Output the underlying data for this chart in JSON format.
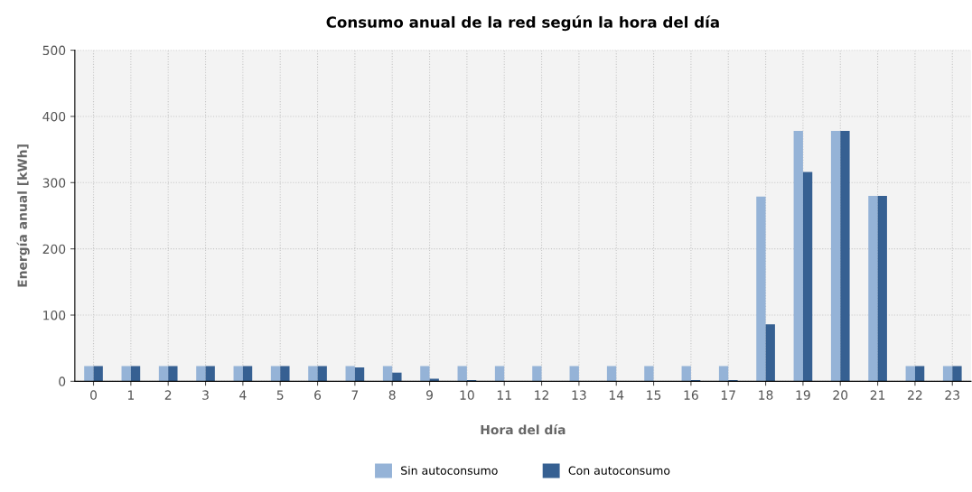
{
  "chart_data": {
    "type": "bar",
    "title": "Consumo anual de la red según la hora del día",
    "xlabel": "Hora del día",
    "ylabel": "Energía anual [kWh]",
    "categories": [
      "0",
      "1",
      "2",
      "3",
      "4",
      "5",
      "6",
      "7",
      "8",
      "9",
      "10",
      "11",
      "12",
      "13",
      "14",
      "15",
      "16",
      "17",
      "18",
      "19",
      "20",
      "21",
      "22",
      "23"
    ],
    "series": [
      {
        "name": "Sin autoconsumo",
        "color": "#95b3d7",
        "values": [
          23,
          23,
          23,
          23,
          23,
          23,
          23,
          23,
          23,
          23,
          23,
          23,
          23,
          23,
          23,
          23,
          23,
          23,
          279,
          378,
          378,
          280,
          23,
          23
        ]
      },
      {
        "name": "Con autoconsumo",
        "color": "#366092",
        "values": [
          23,
          23,
          23,
          23,
          23,
          23,
          23,
          21,
          13,
          4,
          2,
          0,
          0,
          0,
          0,
          0,
          2,
          2,
          86,
          316,
          378,
          280,
          23,
          23
        ]
      }
    ],
    "ylim": [
      0,
      500
    ],
    "yticks": [
      0,
      100,
      200,
      300,
      400,
      500
    ],
    "grid": true,
    "legend": "bottom"
  }
}
